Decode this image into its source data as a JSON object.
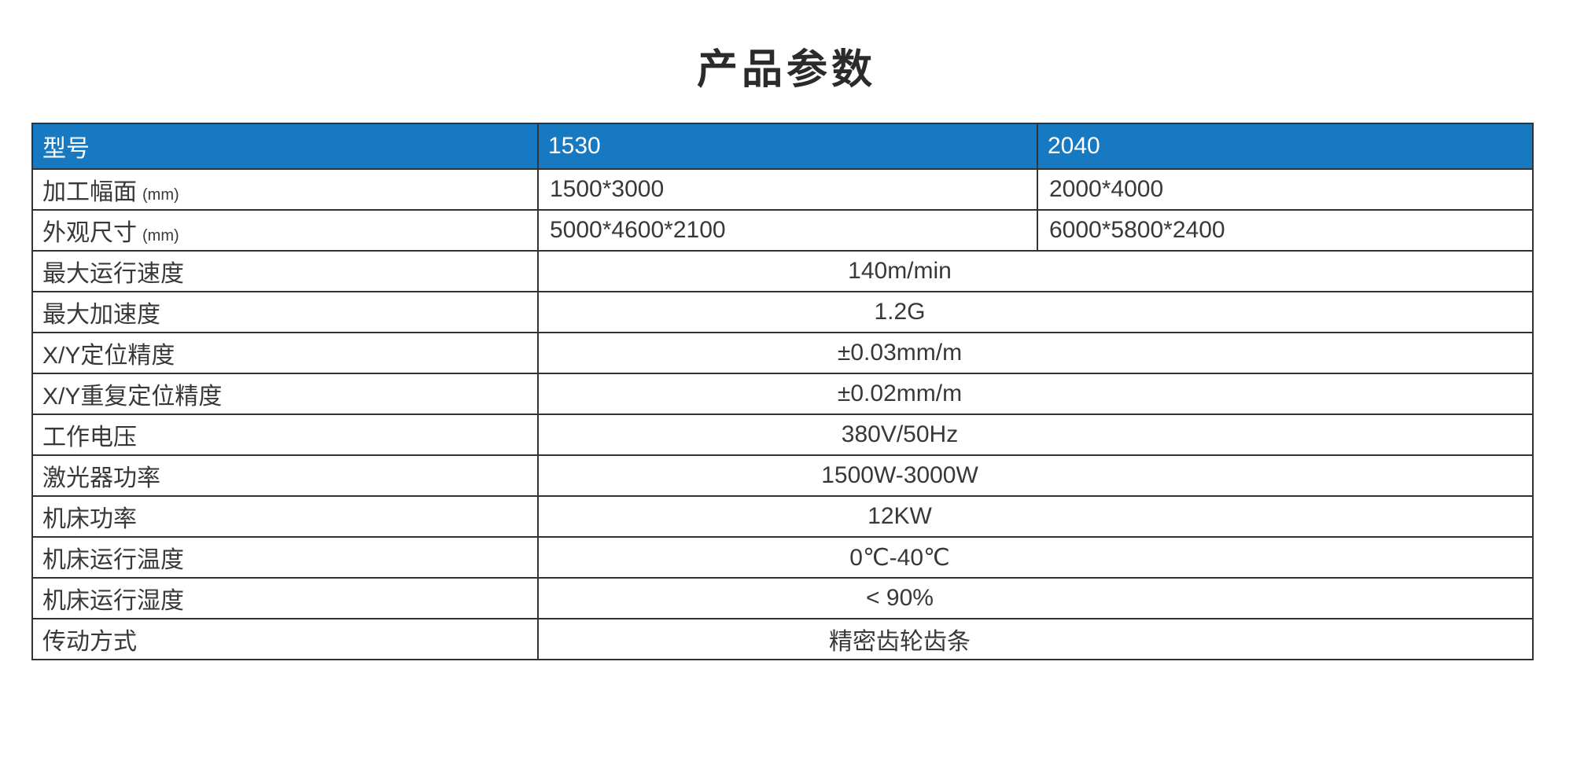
{
  "page": {
    "title": "产品参数"
  },
  "colors": {
    "header_bg": "#1779c2",
    "header_text": "#ffffff",
    "border": "#333333",
    "text": "#383838"
  },
  "table": {
    "header": {
      "col1": "型号",
      "col2": "1530",
      "col3": "2040"
    },
    "rows": [
      {
        "type": "split",
        "label": "加工幅面",
        "label_suffix": "(mm)",
        "col2": "1500*3000",
        "col3": "2000*4000"
      },
      {
        "type": "split",
        "label": "外观尺寸",
        "label_suffix": "(mm)",
        "col2": "5000*4600*2100",
        "col3": "6000*5800*2400"
      },
      {
        "type": "span",
        "label": "最大运行速度",
        "value": "140m/min"
      },
      {
        "type": "span",
        "label": "最大加速度",
        "value": "1.2G"
      },
      {
        "type": "span",
        "label": "X/Y定位精度",
        "value": "±0.03mm/m"
      },
      {
        "type": "span",
        "label": "X/Y重复定位精度",
        "value": "±0.02mm/m"
      },
      {
        "type": "span",
        "label": "工作电压",
        "value": "380V/50Hz"
      },
      {
        "type": "span",
        "label": "激光器功率",
        "value": "1500W-3000W"
      },
      {
        "type": "span",
        "label": "机床功率",
        "value": "12KW"
      },
      {
        "type": "span",
        "label": "机床运行温度",
        "value": "0℃-40℃"
      },
      {
        "type": "span",
        "label": "机床运行湿度",
        "value": "< 90%"
      },
      {
        "type": "span",
        "label": "传动方式",
        "value": "精密齿轮齿条"
      }
    ]
  }
}
